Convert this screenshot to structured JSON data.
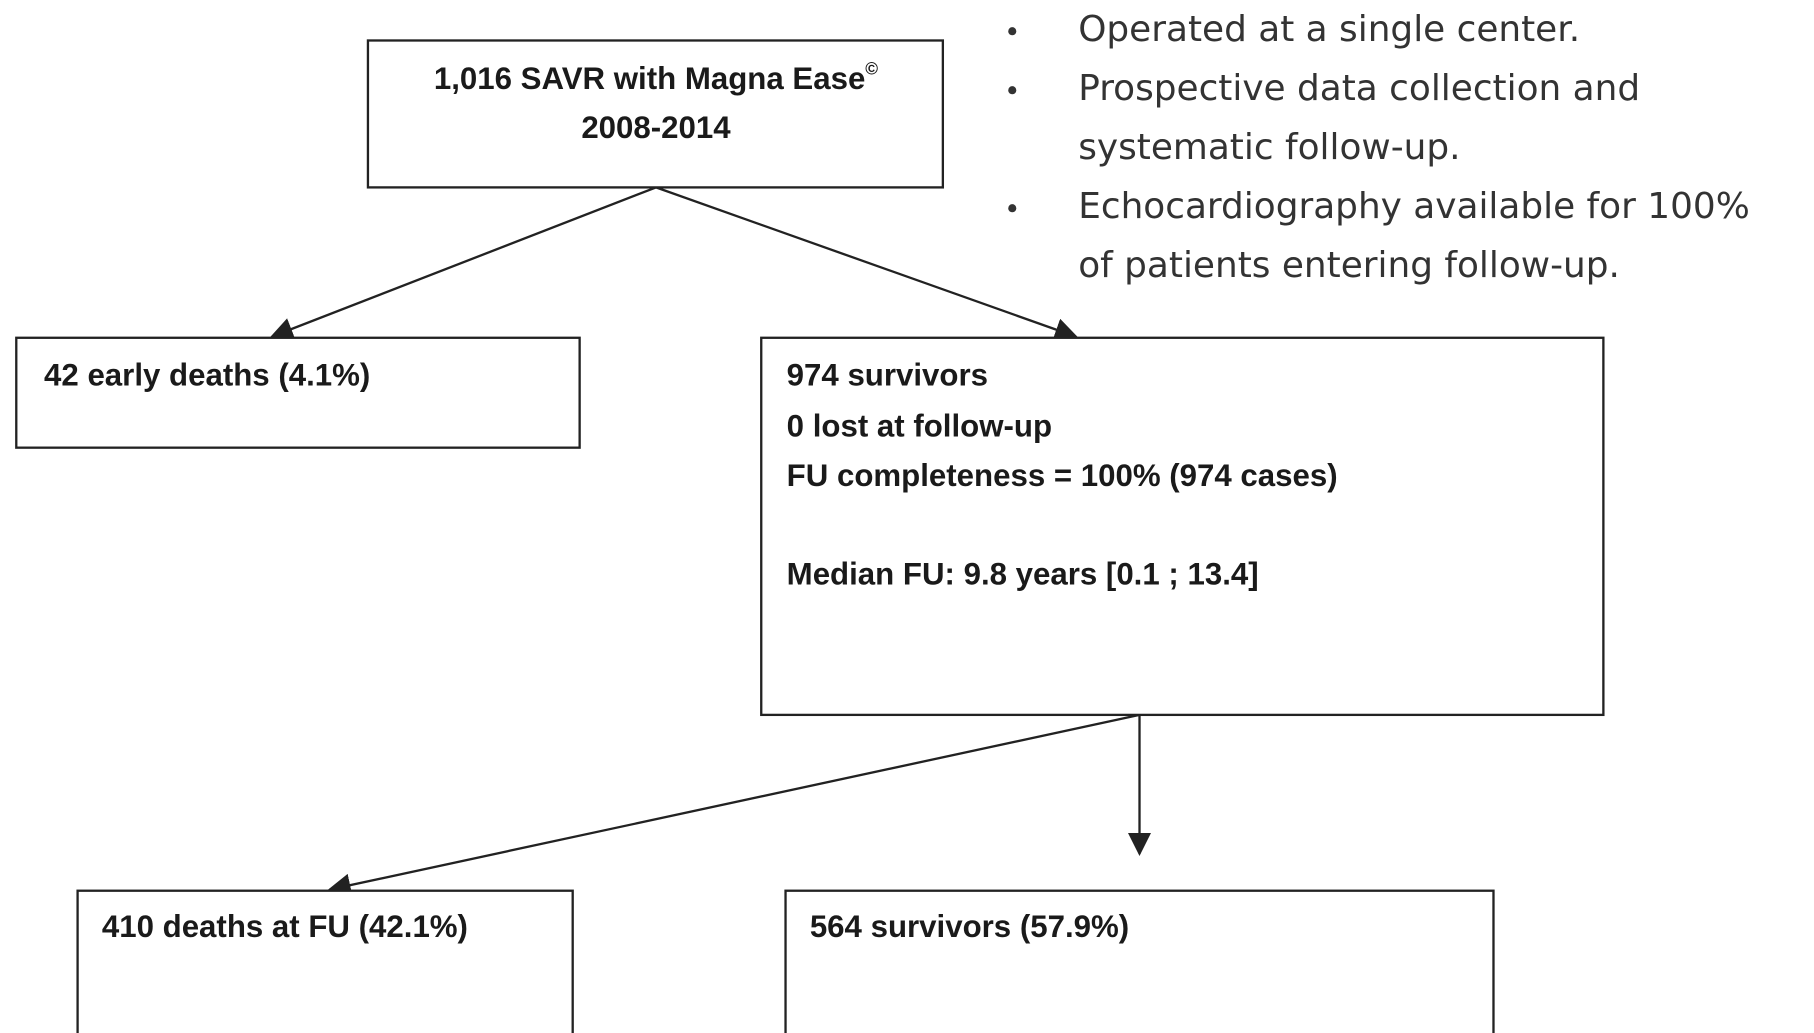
{
  "top": {
    "lines": [
      "1,016 SAVR with Magna Ease",
      "2008-2014"
    ],
    "superscript": "©"
  },
  "bullets": [
    [
      "Operated at a single center."
    ],
    [
      "Prospective data collection and",
      "systematic follow-up."
    ],
    [
      "Echocardiography available for 100%",
      "of patients entering follow-up."
    ]
  ],
  "early_deaths": {
    "label": "42 early deaths (4.1%)"
  },
  "survivors": {
    "lines": [
      "974 survivors",
      "0 lost at follow-up",
      "FU completeness = 100% (974 cases)"
    ],
    "median": "Median FU: 9.8 years [0.1 ; 13.4]"
  },
  "fu_deaths": {
    "label": "410 deaths at FU (42.1%)"
  },
  "fu_survivors": {
    "label": "564 survivors (57.9%)"
  }
}
